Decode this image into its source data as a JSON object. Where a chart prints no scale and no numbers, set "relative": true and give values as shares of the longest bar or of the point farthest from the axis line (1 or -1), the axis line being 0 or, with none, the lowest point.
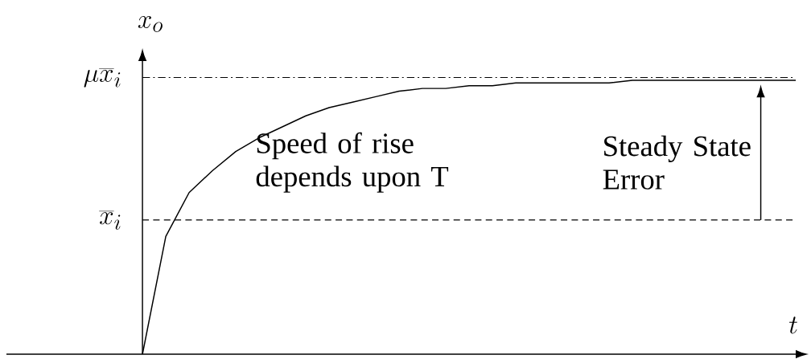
{
  "chart_data": {
    "type": "line",
    "relative": true,
    "xlabel": "t",
    "ylabel": "x_o",
    "categories": [
      null,
      null,
      null,
      null,
      null,
      null,
      null,
      null,
      null,
      null,
      null,
      null,
      null,
      null,
      null,
      null,
      null,
      null,
      null,
      null,
      null,
      null,
      null,
      null,
      null,
      null,
      null,
      null,
      null
    ],
    "series": [
      {
        "color": "#000000",
        "values": [
          0,
          0.43,
          0.59,
          0.67,
          0.74,
          0.79,
          0.83,
          0.87,
          0.9,
          0.92,
          0.94,
          0.96,
          0.97,
          0.97,
          0.98,
          0.98,
          0.99,
          0.99,
          0.99,
          0.99,
          0.99,
          1,
          1,
          1,
          1,
          1,
          1,
          1,
          1
        ]
      }
    ],
    "ref_lines": [
      {
        "axis": "y",
        "value": 1.01,
        "label": "\\mu\\overline{x}_i",
        "line_style": "dashdot",
        "color": "#000000"
      },
      {
        "axis": "y",
        "value": 0.49,
        "label": "\\overline{x}_i",
        "line_style": "dashed",
        "color": "#000000"
      }
    ],
    "annotations": [
      "Speed of rise depends upon T",
      "Steady State Error"
    ],
    "marker": "none"
  }
}
